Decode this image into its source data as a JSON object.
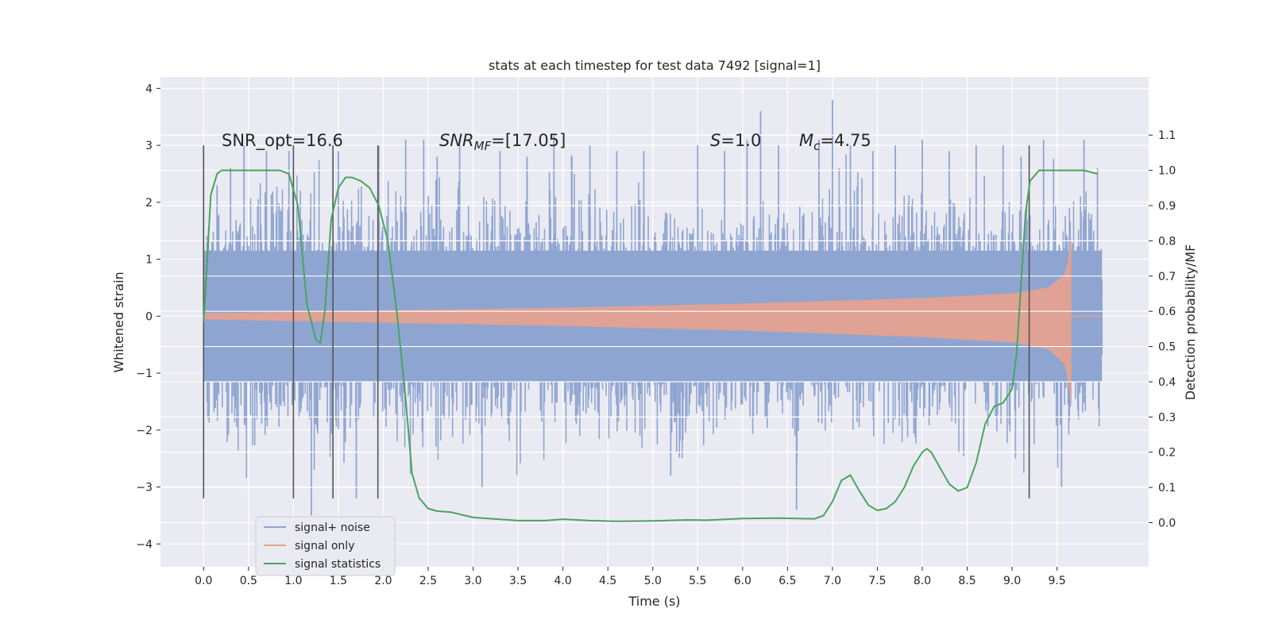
{
  "chart_data": {
    "type": "line",
    "title": "stats at each timestep for test data 7492 [signal=1]",
    "xlabel": "Time (s)",
    "ylabel": "Whitened strain",
    "y2label": "Detection probability/MF",
    "xlim": [
      -0.48,
      10.52
    ],
    "ylim": [
      -4.4,
      4.2
    ],
    "y2lim": [
      -0.125,
      1.265
    ],
    "x_ticks": [
      "0.0",
      "0.5",
      "1.0",
      "1.5",
      "2.0",
      "2.5",
      "3.0",
      "3.5",
      "4.0",
      "4.5",
      "5.0",
      "5.5",
      "6.0",
      "6.5",
      "7.0",
      "7.5",
      "8.0",
      "8.5",
      "9.0",
      "9.5"
    ],
    "x_tick_values": [
      0,
      0.5,
      1,
      1.5,
      2,
      2.5,
      3,
      3.5,
      4,
      4.5,
      5,
      5.5,
      6,
      6.5,
      7,
      7.5,
      8,
      8.5,
      9,
      9.5
    ],
    "y_ticks": [
      "4",
      "3",
      "2",
      "1",
      "0",
      "−1",
      "−2",
      "−3",
      "−4"
    ],
    "y_tick_values": [
      4,
      3,
      2,
      1,
      0,
      -1,
      -2,
      -3,
      -4
    ],
    "y2_ticks": [
      "1.1",
      "1.0",
      "0.9",
      "0.8",
      "0.7",
      "0.6",
      "0.5",
      "0.4",
      "0.3",
      "0.2",
      "0.1",
      "0.0"
    ],
    "y2_tick_values": [
      1.1,
      1.0,
      0.9,
      0.8,
      0.7,
      0.6,
      0.5,
      0.4,
      0.3,
      0.2,
      0.1,
      0.0
    ],
    "grid": true,
    "legend_position": "lower-left",
    "annotations": {
      "snr_opt": "SNR_opt=16.6",
      "snr_mf_prefix": "SNR",
      "snr_mf_sub": "MF",
      "snr_mf_value": "=[17.05]",
      "s_prefix": "S",
      "s_value": "=1.0",
      "mc_prefix": "M",
      "mc_sub": "c",
      "mc_value": "=4.75"
    },
    "vertical_lines_x": [
      0.0,
      1.0,
      1.44,
      1.94,
      9.19
    ],
    "vertical_lines_yrange": [
      -3.2,
      3.0
    ],
    "series": [
      {
        "name": "signal+ noise",
        "color": "#8fa5d1",
        "envelope_x": [
          0.0,
          10.0
        ],
        "typical_amplitude": 1.5,
        "peak_values_x": [
          0.15,
          0.3,
          0.45,
          0.7,
          0.95,
          1.2,
          1.5,
          1.7,
          1.95,
          2.25,
          2.45,
          2.6,
          2.85,
          3.1,
          3.3,
          3.6,
          3.9,
          4.1,
          4.3,
          4.6,
          4.9,
          5.2,
          5.5,
          5.8,
          6.05,
          6.2,
          6.4,
          6.6,
          6.85,
          7.0,
          7.2,
          7.45,
          7.7,
          8.0,
          8.3,
          8.6,
          8.9,
          9.1,
          9.35,
          9.55,
          9.8,
          9.95
        ],
        "peak_values_y": [
          2.3,
          2.6,
          3.0,
          2.9,
          2.9,
          -3.5,
          2.9,
          -3.2,
          3.0,
          3.1,
          3.1,
          2.8,
          3.0,
          -3.0,
          2.9,
          2.8,
          3.2,
          2.8,
          3.0,
          2.9,
          2.9,
          -2.8,
          3.0,
          2.9,
          3.1,
          3.6,
          3.0,
          -3.4,
          3.1,
          3.8,
          3.0,
          2.9,
          3.0,
          3.1,
          2.9,
          3.0,
          3.0,
          2.8,
          3.1,
          -3.0,
          3.1,
          2.6
        ]
      },
      {
        "name": "signal only",
        "color": "#e8a28d",
        "envelope_x": [
          0.0,
          9.66
        ],
        "envelope_amplitude_x": [
          0.0,
          2.0,
          4.0,
          6.0,
          8.0,
          9.0,
          9.4,
          9.6,
          9.66
        ],
        "envelope_amplitude_y": [
          0.05,
          0.1,
          0.15,
          0.22,
          0.32,
          0.4,
          0.5,
          0.75,
          1.4
        ],
        "after_x": [
          9.66,
          10.0
        ],
        "after_amplitude": 0.0
      },
      {
        "name": "signal statistics",
        "color": "#4aa35e",
        "axis": "right",
        "x": [
          0.0,
          0.03,
          0.08,
          0.15,
          0.2,
          0.3,
          0.5,
          0.7,
          0.85,
          0.95,
          1.05,
          1.15,
          1.25,
          1.3,
          1.35,
          1.42,
          1.5,
          1.58,
          1.65,
          1.75,
          1.85,
          1.95,
          2.05,
          2.15,
          2.25,
          2.32,
          2.4,
          2.5,
          2.6,
          2.75,
          3.0,
          3.5,
          3.8,
          4.0,
          4.3,
          4.6,
          5.0,
          5.4,
          5.6,
          6.0,
          6.4,
          6.8,
          6.9,
          7.0,
          7.1,
          7.2,
          7.3,
          7.4,
          7.5,
          7.6,
          7.7,
          7.8,
          7.9,
          8.0,
          8.05,
          8.1,
          8.2,
          8.3,
          8.4,
          8.5,
          8.6,
          8.7,
          8.8,
          8.9,
          9.0,
          9.05,
          9.1,
          9.15,
          9.2,
          9.3,
          9.4,
          9.5,
          9.6,
          9.8,
          9.95
        ],
        "y": [
          0.57,
          0.7,
          0.93,
          0.99,
          1.0,
          1.0,
          1.0,
          1.0,
          1.0,
          0.99,
          0.9,
          0.62,
          0.52,
          0.51,
          0.6,
          0.86,
          0.95,
          0.98,
          0.98,
          0.97,
          0.95,
          0.9,
          0.8,
          0.6,
          0.35,
          0.14,
          0.07,
          0.04,
          0.033,
          0.03,
          0.015,
          0.006,
          0.006,
          0.01,
          0.006,
          0.004,
          0.005,
          0.008,
          0.007,
          0.012,
          0.013,
          0.011,
          0.02,
          0.06,
          0.12,
          0.135,
          0.09,
          0.05,
          0.035,
          0.04,
          0.06,
          0.1,
          0.16,
          0.2,
          0.21,
          0.2,
          0.155,
          0.11,
          0.09,
          0.1,
          0.17,
          0.28,
          0.33,
          0.34,
          0.38,
          0.48,
          0.68,
          0.88,
          0.97,
          1.0,
          1.0,
          1.0,
          1.0,
          1.0,
          0.99
        ]
      }
    ]
  }
}
